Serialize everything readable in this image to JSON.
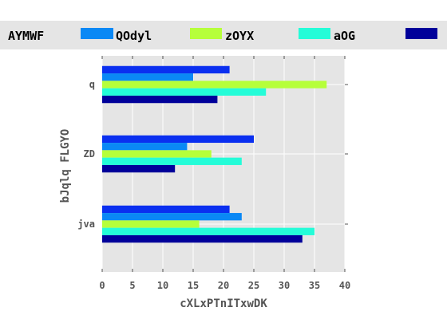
{
  "chart_data": {
    "type": "bar",
    "orientation": "horizontal",
    "title": "",
    "xlabel": "cXLxPTnITxwDK",
    "ylabel": "bJqlq FLGYO",
    "categories": [
      "q",
      "ZD",
      "jva"
    ],
    "xlim": [
      0,
      40
    ],
    "xticks": [
      0,
      5,
      10,
      15,
      20,
      25,
      30,
      35,
      40
    ],
    "grid": true,
    "legend_placement": "top",
    "series": [
      {
        "name": "AYMWF",
        "color": "#0a2ff0",
        "values": [
          21,
          25,
          21
        ]
      },
      {
        "name": "QOdyl",
        "color": "#0a88f5",
        "values": [
          15,
          14,
          23
        ]
      },
      {
        "name": "zOYX",
        "color": "#b6ff3a",
        "values": [
          37,
          18,
          16
        ]
      },
      {
        "name": "aOG",
        "color": "#24fcd8",
        "values": [
          27,
          23,
          35
        ]
      },
      {
        "name": "",
        "color": "#00009a",
        "values": [
          19,
          12,
          33
        ]
      }
    ]
  }
}
